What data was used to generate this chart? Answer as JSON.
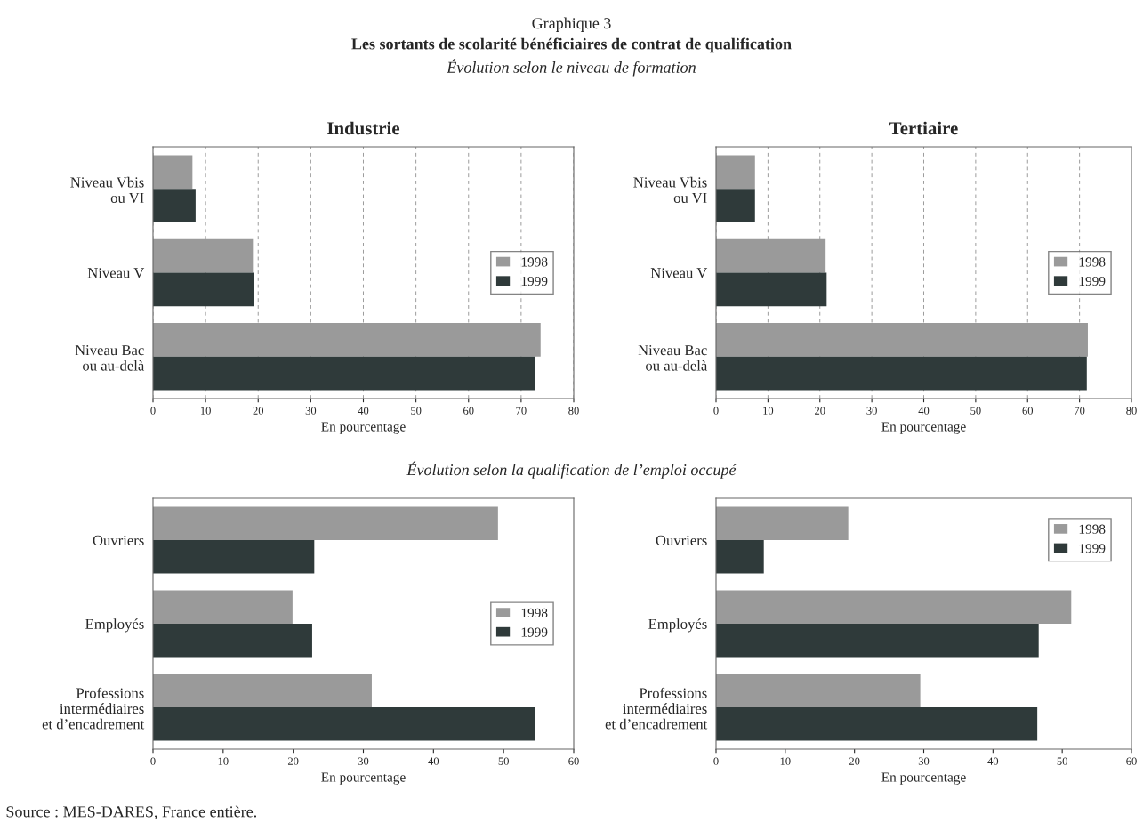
{
  "chart_data": [
    {
      "type": "bar",
      "orientation": "horizontal",
      "title": "Industrie",
      "xlabel": "En pourcentage",
      "annotations": [
        "Graphique 3",
        "Les sortants de scolarité bénéficiaires de contrat de qualification",
        "Évolution selon le niveau de formation"
      ],
      "categories": [
        "Niveau Vbis\nou VI",
        "Niveau V",
        "Niveau Bac\nou au-delà"
      ],
      "series": [
        {
          "name": "1998",
          "color": "#9a9a9a",
          "values": [
            7.5,
            19.0,
            73.7
          ]
        },
        {
          "name": "1999",
          "color": "#2f3a3a",
          "values": [
            8.1,
            19.2,
            72.7
          ]
        }
      ],
      "xlim": [
        0,
        80
      ],
      "xticks": [
        0,
        10,
        20,
        30,
        40,
        50,
        60,
        70,
        80
      ],
      "grid": "x",
      "legend": "right"
    },
    {
      "type": "bar",
      "orientation": "horizontal",
      "title": "Tertiaire",
      "xlabel": "En pourcentage",
      "categories": [
        "Niveau Vbis\nou VI",
        "Niveau V",
        "Niveau Bac\nou au-delà"
      ],
      "series": [
        {
          "name": "1998",
          "color": "#9a9a9a",
          "values": [
            7.5,
            21.1,
            71.6
          ]
        },
        {
          "name": "1999",
          "color": "#2f3a3a",
          "values": [
            7.5,
            21.3,
            71.4
          ]
        }
      ],
      "xlim": [
        0,
        80
      ],
      "xticks": [
        0,
        10,
        20,
        30,
        40,
        50,
        60,
        70,
        80
      ],
      "grid": "x",
      "legend": "right"
    },
    {
      "type": "bar",
      "orientation": "horizontal",
      "xlabel": "En pourcentage",
      "annotations": [
        "Évolution selon la qualification de l’emploi occupé",
        "Source : MES-DARES, France entière."
      ],
      "categories": [
        "Ouvriers",
        "Employés",
        "Professions\nintermédiaires\net d’encadrement"
      ],
      "series": [
        {
          "name": "1998",
          "color": "#9a9a9a",
          "values": [
            49.2,
            19.9,
            31.2
          ]
        },
        {
          "name": "1999",
          "color": "#2f3a3a",
          "values": [
            23.0,
            22.7,
            54.5
          ]
        }
      ],
      "xlim": [
        0,
        60
      ],
      "xticks": [
        0,
        10,
        20,
        30,
        40,
        50,
        60
      ],
      "legend": "right"
    },
    {
      "type": "bar",
      "orientation": "horizontal",
      "xlabel": "En pourcentage",
      "categories": [
        "Ouvriers",
        "Employés",
        "Professions\nintermédiaires\net d’encadrement"
      ],
      "series": [
        {
          "name": "1998",
          "color": "#9a9a9a",
          "values": [
            19.1,
            51.3,
            29.5
          ]
        },
        {
          "name": "1999",
          "color": "#2f3a3a",
          "values": [
            6.9,
            46.6,
            46.4
          ]
        }
      ],
      "xlim": [
        0,
        60
      ],
      "xticks": [
        0,
        10,
        20,
        30,
        40,
        50,
        60
      ],
      "legend": "upper right"
    }
  ]
}
